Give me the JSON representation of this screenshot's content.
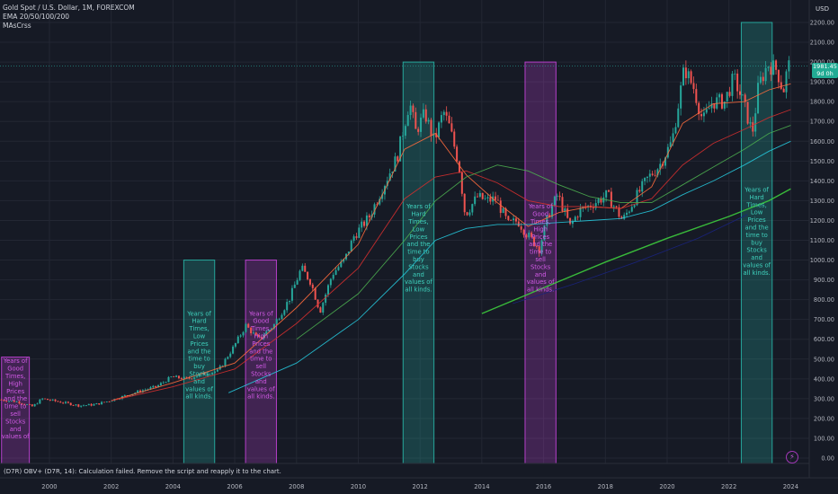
{
  "legend": {
    "symbol_line": "Gold Spot / U.S. Dollar, 1M, FOREXCOM",
    "indicator1": "EMA 20/50/100/200",
    "indicator2": "MAsCrss"
  },
  "price_axis_currency": "USD",
  "last_price": {
    "value": "1981.45",
    "countdown": "9d 0h"
  },
  "status_message": "(D7R) OBV+ (D7R, 14): Calculation failed. Remove the script and reapply it to the chart.",
  "colors": {
    "background": "#161a25",
    "grid": "#232733",
    "candle_up": "#26a69a",
    "candle_down": "#ef5350",
    "ema20": "#ff6b3d",
    "ema50": "#d32f2f",
    "ema100": "#4caf50",
    "ema200": "#26c6da",
    "mascrss_line": "#3dcc3d",
    "mascrss_dark": "#1a237e",
    "green_box": "#26a69a",
    "magenta_box": "#b53fc9"
  },
  "chart_data": {
    "type": "candlestick",
    "title": "Gold Spot / U.S. Dollar, 1M, FOREXCOM",
    "ylim": [
      0,
      2300
    ],
    "xlim": [
      1998.4,
      2024.6
    ],
    "yticks": [
      0,
      100,
      200,
      300,
      400,
      500,
      600,
      700,
      800,
      900,
      1000,
      1100,
      1200,
      1300,
      1400,
      1500,
      1600,
      1700,
      1800,
      1900,
      2000,
      2100,
      2200
    ],
    "ytick_labels": [
      "0.00",
      "100.00",
      "200.00",
      "300.00",
      "400.00",
      "500.00",
      "600.00",
      "700.00",
      "800.00",
      "900.00",
      "1000.00",
      "1100.00",
      "1200.00",
      "1300.00",
      "1400.00",
      "1500.00",
      "1600.00",
      "1700.00",
      "1800.00",
      "1900.00",
      "2000.00",
      "2100.00",
      "2200.00"
    ],
    "xticks": [
      2000,
      2002,
      2004,
      2006,
      2008,
      2010,
      2012,
      2014,
      2016,
      2018,
      2020,
      2022,
      2024
    ],
    "xtick_labels": [
      "2000",
      "2002",
      "2004",
      "2006",
      "2008",
      "2010",
      "2012",
      "2014",
      "2016",
      "2018",
      "2020",
      "2022",
      "2024"
    ],
    "price_path": [
      [
        1998.4,
        295
      ],
      [
        1999.0,
        285
      ],
      [
        1999.5,
        260
      ],
      [
        1999.8,
        300
      ],
      [
        2000.5,
        280
      ],
      [
        2001.0,
        265
      ],
      [
        2001.5,
        270
      ],
      [
        2002.0,
        290
      ],
      [
        2002.5,
        315
      ],
      [
        2003.0,
        340
      ],
      [
        2003.5,
        360
      ],
      [
        2004.0,
        410
      ],
      [
        2004.5,
        400
      ],
      [
        2005.0,
        425
      ],
      [
        2005.5,
        440
      ],
      [
        2006.0,
        560
      ],
      [
        2006.4,
        670
      ],
      [
        2006.8,
        600
      ],
      [
        2007.3,
        670
      ],
      [
        2007.8,
        800
      ],
      [
        2008.2,
        960
      ],
      [
        2008.5,
        890
      ],
      [
        2008.8,
        740
      ],
      [
        2009.2,
        930
      ],
      [
        2009.6,
        1000
      ],
      [
        2009.9,
        1120
      ],
      [
        2010.4,
        1220
      ],
      [
        2010.9,
        1390
      ],
      [
        2011.3,
        1520
      ],
      [
        2011.7,
        1800
      ],
      [
        2011.9,
        1650
      ],
      [
        2012.2,
        1740
      ],
      [
        2012.5,
        1600
      ],
      [
        2012.8,
        1750
      ],
      [
        2013.0,
        1670
      ],
      [
        2013.3,
        1480
      ],
      [
        2013.5,
        1230
      ],
      [
        2013.9,
        1320
      ],
      [
        2014.2,
        1300
      ],
      [
        2014.5,
        1310
      ],
      [
        2014.9,
        1180
      ],
      [
        2015.2,
        1200
      ],
      [
        2015.5,
        1130
      ],
      [
        2015.9,
        1060
      ],
      [
        2016.2,
        1230
      ],
      [
        2016.5,
        1330
      ],
      [
        2016.9,
        1170
      ],
      [
        2017.2,
        1250
      ],
      [
        2017.6,
        1280
      ],
      [
        2018.1,
        1330
      ],
      [
        2018.6,
        1200
      ],
      [
        2019.0,
        1310
      ],
      [
        2019.4,
        1410
      ],
      [
        2019.8,
        1480
      ],
      [
        2020.2,
        1600
      ],
      [
        2020.6,
        1970
      ],
      [
        2020.9,
        1870
      ],
      [
        2021.2,
        1700
      ],
      [
        2021.5,
        1800
      ],
      [
        2021.9,
        1800
      ],
      [
        2022.2,
        1920
      ],
      [
        2022.5,
        1800
      ],
      [
        2022.8,
        1640
      ],
      [
        2023.0,
        1880
      ],
      [
        2023.3,
        1990
      ],
      [
        2023.6,
        1960
      ],
      [
        2023.8,
        1850
      ],
      [
        2023.95,
        1981
      ]
    ],
    "series": [
      {
        "name": "EMA 20",
        "x": [
          2002.0,
          2004.0,
          2006.0,
          2008.0,
          2010.0,
          2011.5,
          2012.5,
          2013.5,
          2014.5,
          2015.5,
          2016.5,
          2017.5,
          2018.5,
          2019.5,
          2020.5,
          2021.5,
          2022.5,
          2023.3,
          2024.0
        ],
        "y": [
          290,
          380,
          480,
          760,
          1080,
          1560,
          1640,
          1430,
          1290,
          1170,
          1240,
          1270,
          1260,
          1370,
          1690,
          1790,
          1800,
          1860,
          1890
        ]
      },
      {
        "name": "EMA 50",
        "x": [
          2002.0,
          2004.0,
          2006.0,
          2008.0,
          2010.0,
          2011.5,
          2012.5,
          2013.5,
          2014.5,
          2015.5,
          2016.5,
          2017.5,
          2018.5,
          2019.5,
          2020.5,
          2021.5,
          2022.5,
          2023.3,
          2024.0
        ],
        "y": [
          290,
          360,
          450,
          680,
          960,
          1310,
          1420,
          1450,
          1390,
          1300,
          1270,
          1270,
          1260,
          1310,
          1480,
          1590,
          1660,
          1720,
          1760
        ]
      },
      {
        "name": "EMA 100",
        "x": [
          2008.0,
          2010.0,
          2011.5,
          2012.5,
          2013.5,
          2014.5,
          2015.5,
          2016.5,
          2017.5,
          2018.5,
          2019.5,
          2020.5,
          2021.5,
          2022.5,
          2023.3,
          2024.0
        ],
        "y": [
          600,
          830,
          1100,
          1300,
          1420,
          1480,
          1450,
          1380,
          1320,
          1290,
          1290,
          1380,
          1470,
          1560,
          1640,
          1680
        ]
      },
      {
        "name": "EMA 200",
        "x": [
          2005.8,
          2008.0,
          2010.0,
          2011.5,
          2012.5,
          2013.5,
          2014.5,
          2015.5,
          2016.5,
          2017.5,
          2018.5,
          2019.5,
          2020.5,
          2021.5,
          2022.5,
          2023.3,
          2024.0
        ],
        "y": [
          330,
          480,
          700,
          930,
          1100,
          1160,
          1180,
          1180,
          1190,
          1200,
          1210,
          1250,
          1330,
          1400,
          1480,
          1550,
          1600
        ]
      },
      {
        "name": "MAsCrss",
        "x": [
          2014.0,
          2016.0,
          2018.0,
          2020.0,
          2022.0,
          2023.3,
          2024.0
        ],
        "y": [
          730,
          860,
          990,
          1110,
          1220,
          1300,
          1360
        ]
      },
      {
        "name": "MAsCrss dark",
        "x": [
          2015.0,
          2017.0,
          2019.0,
          2021.0,
          2022.6
        ],
        "y": [
          780,
          880,
          990,
          1110,
          1230
        ]
      }
    ],
    "highlight_zones": [
      {
        "kind": "good",
        "x0": 1998.45,
        "x1": 1999.35,
        "y0": 0,
        "y1": 510,
        "label": [
          "Years of",
          "Good",
          "Times,",
          "High",
          "Prices",
          "and the",
          "time to",
          "sell",
          "Stocks",
          "and",
          "values of"
        ]
      },
      {
        "kind": "hard",
        "x0": 2004.35,
        "x1": 2005.35,
        "y0": 0,
        "y1": 1000,
        "label": [
          "Years of",
          "Hard",
          "Times,",
          "Low",
          "Prices",
          "and the",
          "time to",
          "buy",
          "Stocks",
          "and",
          "values of",
          "all kinds."
        ]
      },
      {
        "kind": "good",
        "x0": 2006.35,
        "x1": 2007.35,
        "y0": 0,
        "y1": 1000,
        "label": [
          "Years of",
          "Good",
          "Times,",
          "High",
          "Prices",
          "and the",
          "time to",
          "sell",
          "Stocks",
          "and",
          "values of",
          "all kinds."
        ]
      },
      {
        "kind": "hard",
        "x0": 2011.45,
        "x1": 2012.45,
        "y0": 0,
        "y1": 2000,
        "label": [
          "Years of",
          "Hard",
          "Times,",
          "Low",
          "Prices",
          "and the",
          "time to",
          "buy",
          "Stocks",
          "and",
          "values of",
          "all kinds."
        ]
      },
      {
        "kind": "good",
        "x0": 2015.4,
        "x1": 2016.4,
        "y0": 0,
        "y1": 2000,
        "label": [
          "Years of",
          "Good",
          "Times,",
          "High",
          "Prices",
          "and the",
          "time to",
          "sell",
          "Stocks",
          "and",
          "values of",
          "all kinds."
        ]
      },
      {
        "kind": "hard",
        "x0": 2022.4,
        "x1": 2023.4,
        "y0": 0,
        "y1": 2200,
        "label": [
          "Years of",
          "Hard",
          "Times,",
          "Low",
          "Prices",
          "and the",
          "time to",
          "buy",
          "Stocks",
          "and",
          "values of",
          "all kinds."
        ]
      }
    ],
    "last_price_line": 1981
  }
}
